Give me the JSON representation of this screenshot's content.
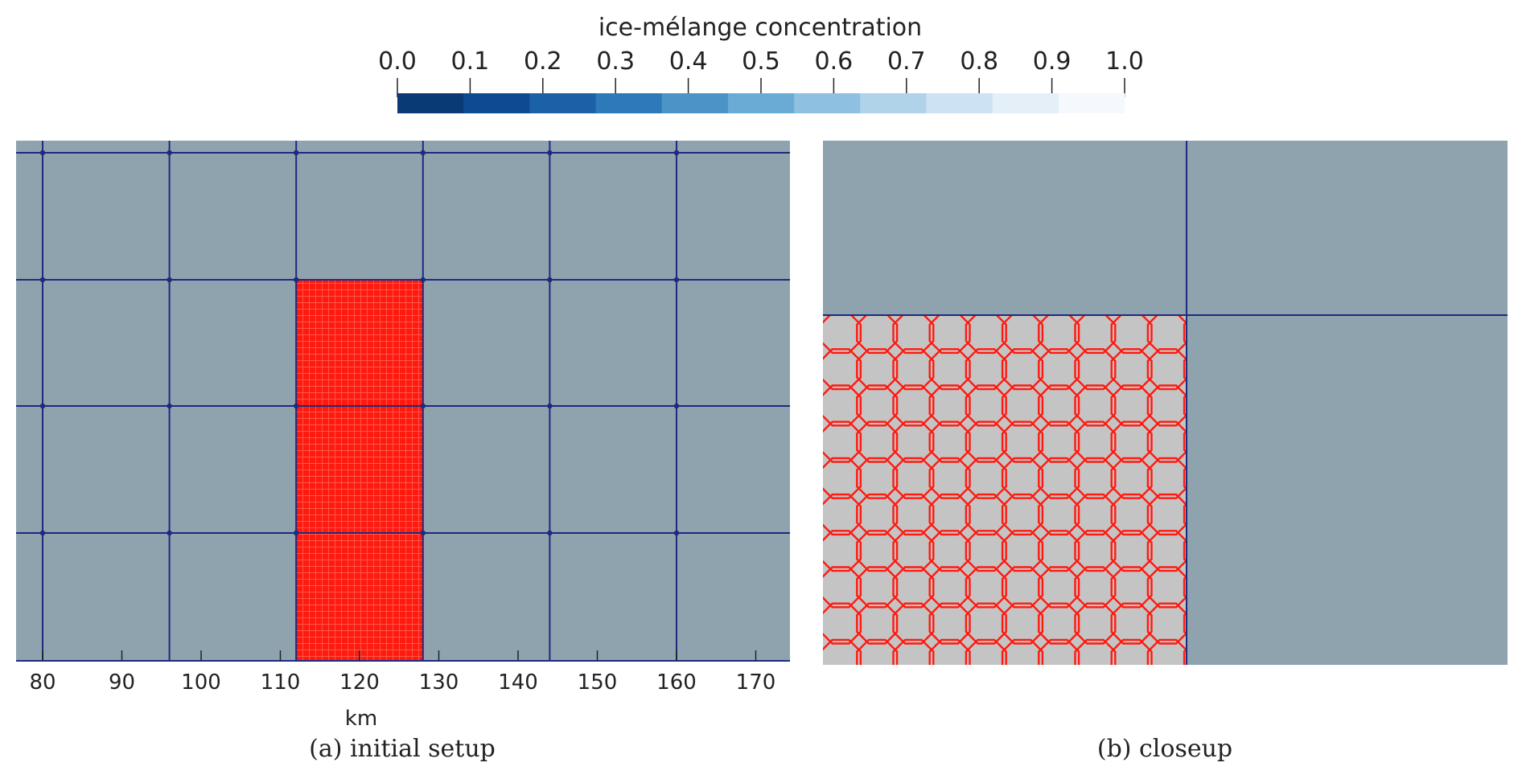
{
  "colorbar": {
    "title": "ice-mélange concentration",
    "ticks": [
      "0.0",
      "0.1",
      "0.2",
      "0.3",
      "0.4",
      "0.5",
      "0.6",
      "0.7",
      "0.8",
      "0.9",
      "1.0"
    ],
    "colors": [
      "#0a3a76",
      "#0d4a91",
      "#1a61a7",
      "#2e79b9",
      "#4a94c8",
      "#6aabd6",
      "#8dc0e1",
      "#b1d3ea",
      "#cde2f2",
      "#e4eff8",
      "#f5f9fe"
    ]
  },
  "panels": {
    "a": {
      "caption": "(a) initial setup",
      "xlabel": "km",
      "xticks": [
        "80",
        "90",
        "100",
        "110",
        "120",
        "130",
        "140",
        "150",
        "160",
        "170"
      ],
      "x_tick_values": [
        80,
        90,
        100,
        110,
        120,
        130,
        140,
        150,
        160,
        170
      ],
      "grid_x_km": [
        80,
        96,
        112,
        128,
        144,
        160
      ],
      "red_region_km": [
        112,
        128
      ]
    },
    "b": {
      "caption": "(b) closeup"
    }
  },
  "colors": {
    "background_cell": "#8fa3ae",
    "grid_line": "#1c2a80",
    "ice_red": "#ff1a10",
    "closeup_fill": "#c4c4c4"
  }
}
